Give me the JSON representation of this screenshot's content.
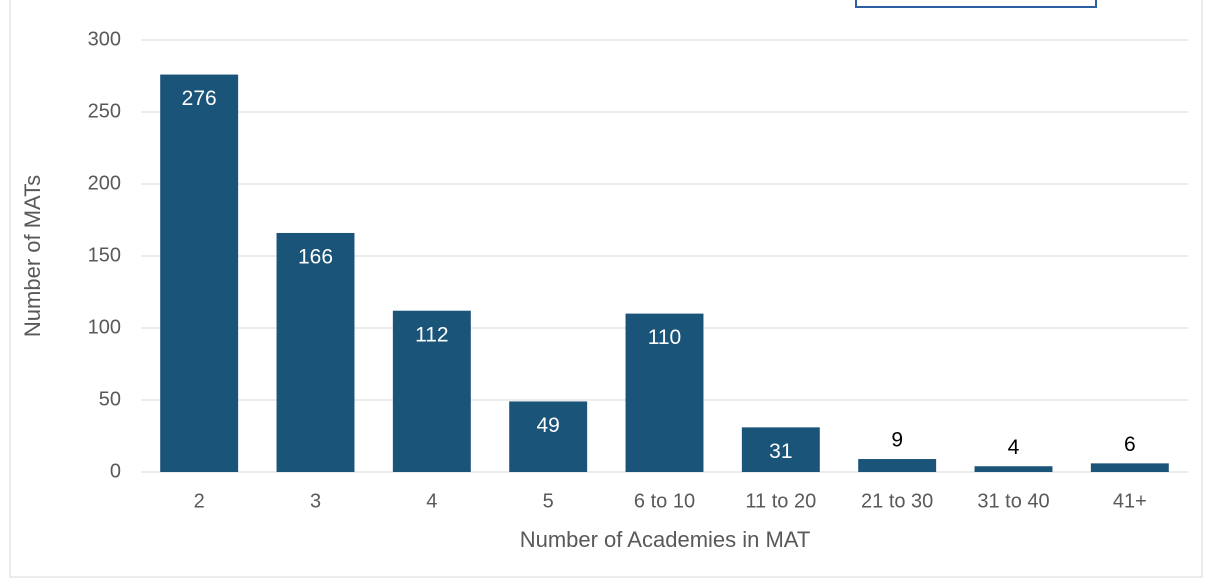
{
  "chart_data": {
    "type": "bar",
    "categories": [
      "2",
      "3",
      "4",
      "5",
      "6 to 10",
      "11 to 20",
      "21 to 30",
      "31 to 40",
      "41+"
    ],
    "values": [
      276,
      166,
      112,
      49,
      110,
      31,
      9,
      4,
      6
    ],
    "color": "#1b5479",
    "ylim": [
      0,
      300
    ],
    "yticks": [
      0,
      50,
      100,
      150,
      200,
      250,
      300
    ],
    "grid": true,
    "y_label": "Number of MATs",
    "x_label": "Number of Academies in MAT"
  }
}
